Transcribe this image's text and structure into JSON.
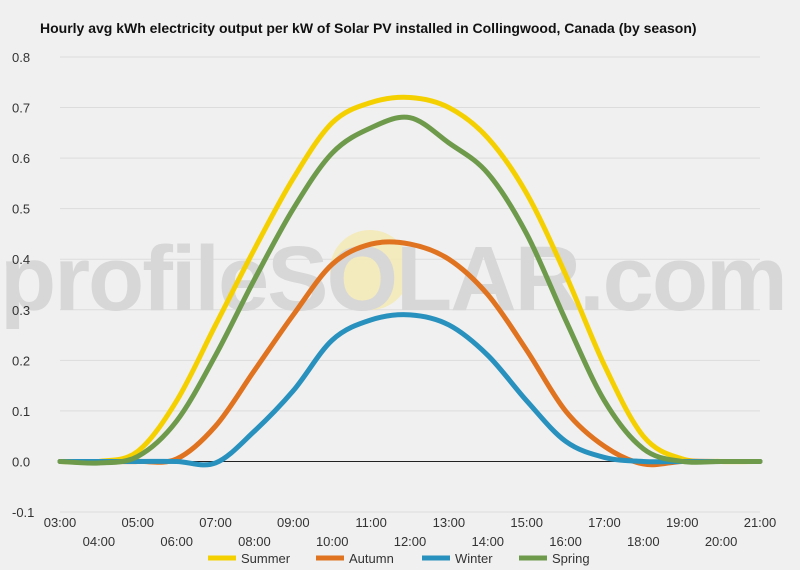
{
  "chart_data": {
    "type": "line",
    "title": "Hourly avg kWh electricity output per kW of Solar PV installed in Collingwood, Canada (by season)",
    "xlabel": "",
    "ylabel": "",
    "ylim": [
      -0.1,
      0.8
    ],
    "yticks": [
      "-0.1",
      "0.0",
      "0.1",
      "0.2",
      "0.3",
      "0.4",
      "0.5",
      "0.6",
      "0.7",
      "0.8"
    ],
    "categories": [
      "03:00",
      "04:00",
      "05:00",
      "06:00",
      "07:00",
      "08:00",
      "09:00",
      "10:00",
      "11:00",
      "12:00",
      "13:00",
      "14:00",
      "15:00",
      "16:00",
      "17:00",
      "18:00",
      "19:00",
      "20:00",
      "21:00"
    ],
    "grid": true,
    "legend_position": "bottom",
    "watermark": "profileSOLAR.com",
    "series": [
      {
        "name": "Summer",
        "color": "#f5d000",
        "values": [
          0.0,
          0.0,
          0.02,
          0.12,
          0.27,
          0.42,
          0.56,
          0.67,
          0.71,
          0.72,
          0.7,
          0.64,
          0.53,
          0.37,
          0.19,
          0.05,
          0.005,
          0.0,
          0.0
        ]
      },
      {
        "name": "Autumn",
        "color": "#e0731f",
        "values": [
          0.0,
          0.0,
          0.0,
          0.005,
          0.07,
          0.18,
          0.29,
          0.39,
          0.43,
          0.43,
          0.4,
          0.33,
          0.22,
          0.1,
          0.03,
          -0.005,
          0.0,
          0.0,
          0.0
        ]
      },
      {
        "name": "Winter",
        "color": "#2891bd",
        "values": [
          0.0,
          0.0,
          0.0,
          0.0,
          -0.003,
          0.06,
          0.14,
          0.24,
          0.28,
          0.29,
          0.27,
          0.21,
          0.12,
          0.04,
          0.008,
          0.0,
          0.0,
          0.0,
          0.0
        ]
      },
      {
        "name": "Spring",
        "color": "#6e9a4b",
        "values": [
          0.0,
          -0.003,
          0.01,
          0.08,
          0.21,
          0.36,
          0.5,
          0.61,
          0.66,
          0.68,
          0.63,
          0.57,
          0.45,
          0.28,
          0.12,
          0.025,
          0.0,
          0.0,
          0.0
        ]
      }
    ]
  }
}
